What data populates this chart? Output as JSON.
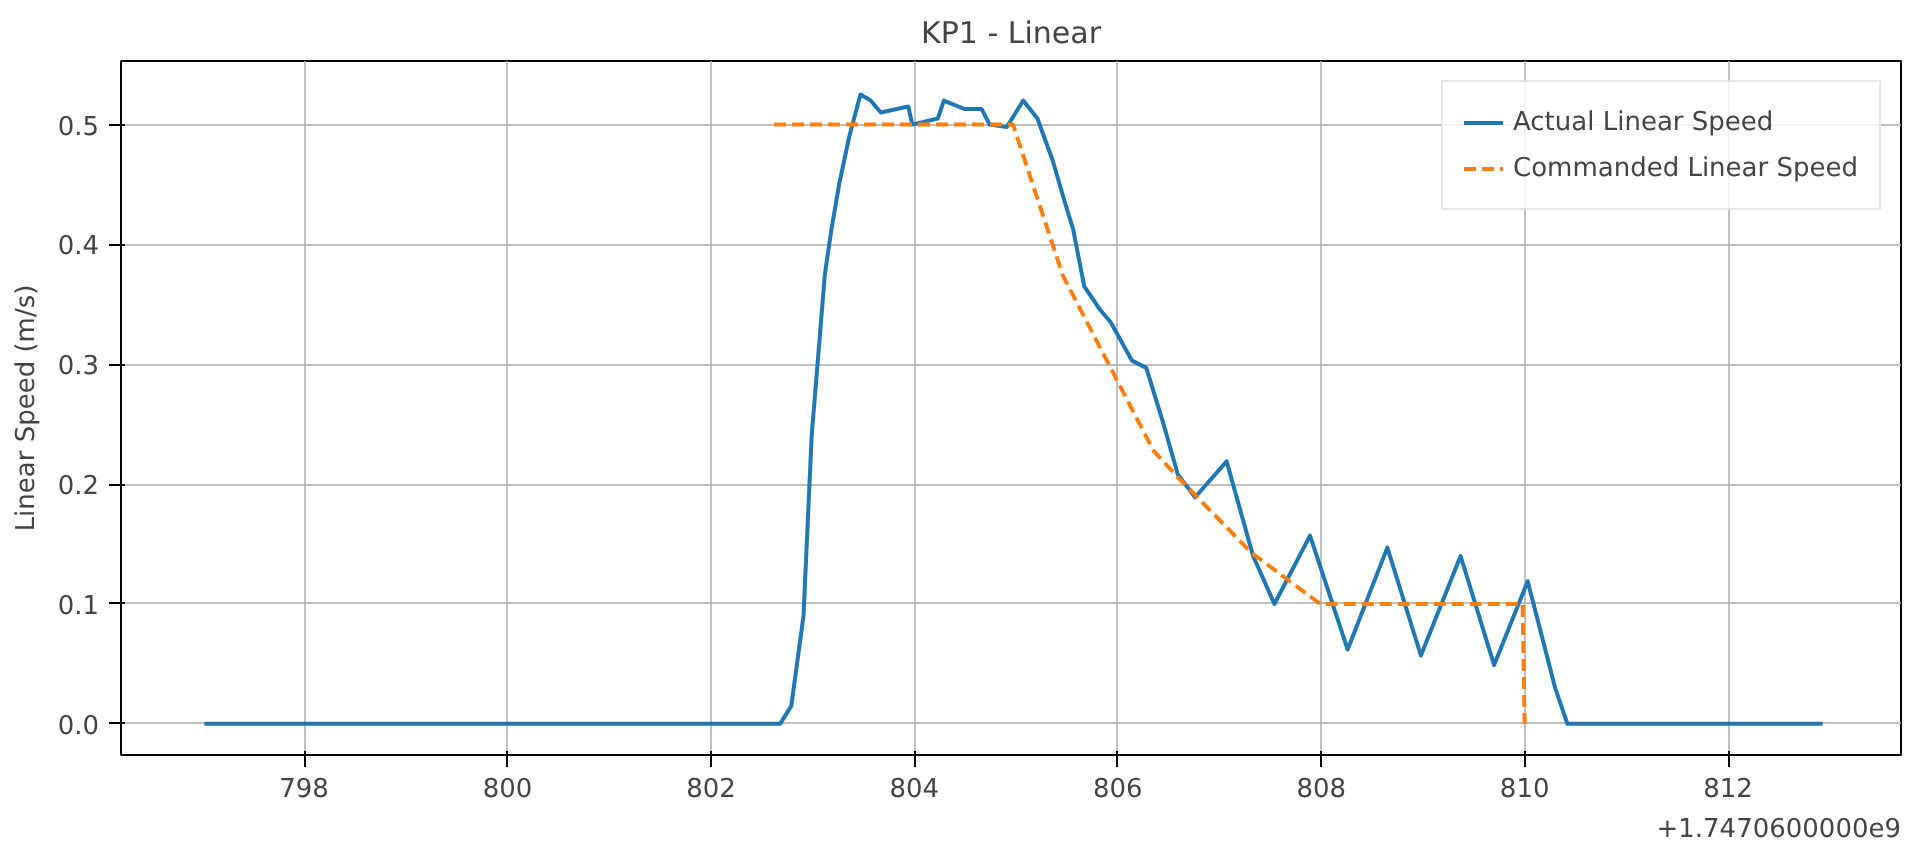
{
  "chart_data": {
    "type": "line",
    "title": "KP1 - Linear",
    "ylabel": "Linear Speed (m/s)",
    "xlim": [
      796.2,
      813.7
    ],
    "ylim": [
      -0.026,
      0.553
    ],
    "xticks": [
      798,
      800,
      802,
      804,
      806,
      808,
      810,
      812
    ],
    "yticks": [
      {
        "value": 0,
        "label": "0.0"
      },
      0.1,
      0.2,
      0.3,
      0.4,
      0.5
    ],
    "grid": true,
    "legend": "top right",
    "annotations": [
      "+1.7470600000e9"
    ],
    "series": [
      {
        "name": "Actual Linear Speed",
        "color": "#1f77b4",
        "line_style": "solid",
        "x": [
          797.02,
          802.68,
          802.79,
          802.91,
          802.99,
          803.12,
          803.18,
          803.26,
          803.36,
          803.47,
          803.57,
          803.67,
          803.94,
          803.98,
          804.08,
          804.23,
          804.29,
          804.49,
          804.66,
          804.74,
          804.91,
          805.07,
          805.21,
          805.36,
          805.48,
          805.56,
          805.67,
          805.83,
          805.93,
          806.14,
          806.28,
          806.45,
          806.59,
          806.76,
          807.07,
          807.33,
          807.54,
          807.89,
          808.26,
          808.65,
          808.98,
          809.37,
          809.7,
          810.03,
          810.3,
          810.42,
          812.93
        ],
        "values": [
          0.0,
          0.0,
          0.015,
          0.09,
          0.24,
          0.375,
          0.41,
          0.45,
          0.49,
          0.525,
          0.52,
          0.51,
          0.515,
          0.5,
          0.502,
          0.505,
          0.52,
          0.513,
          0.513,
          0.5,
          0.498,
          0.52,
          0.505,
          0.47,
          0.435,
          0.413,
          0.365,
          0.345,
          0.335,
          0.303,
          0.297,
          0.25,
          0.208,
          0.189,
          0.219,
          0.14,
          0.1,
          0.157,
          0.062,
          0.147,
          0.057,
          0.14,
          0.049,
          0.119,
          0.03,
          0.0,
          0.0
        ]
      },
      {
        "name": "Commanded Linear Speed",
        "color": "#ff7f0e",
        "line_style": "dashed",
        "x": [
          802.62,
          804.97,
          805.46,
          806.35,
          806.61,
          807.31,
          807.99,
          809.98,
          810.0
        ],
        "values": [
          0.5,
          0.5,
          0.374,
          0.228,
          0.204,
          0.143,
          0.1,
          0.1,
          0.0
        ]
      }
    ]
  }
}
